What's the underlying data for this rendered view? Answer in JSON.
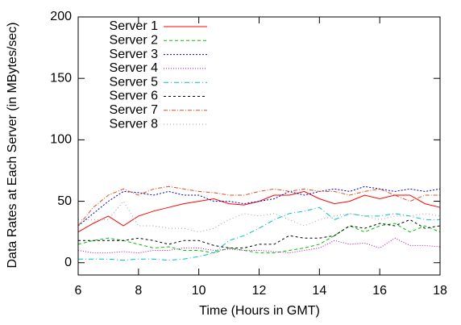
{
  "chart_data": {
    "type": "line",
    "xlabel": "Time (Hours in GMT)",
    "ylabel": "Data Rates at Each Server (in MBytes/sec)",
    "x": [
      6,
      6.5,
      7,
      7.5,
      8,
      8.5,
      9,
      9.5,
      10,
      10.5,
      11,
      11.5,
      12,
      12.5,
      13,
      13.5,
      14,
      14.5,
      15,
      15.5,
      16,
      16.5,
      17,
      17.5,
      18
    ],
    "xlim": [
      6,
      18
    ],
    "xticks": [
      6,
      8,
      10,
      12,
      14,
      16,
      18
    ],
    "ylim": [
      -10,
      200
    ],
    "yticks": [
      0,
      50,
      100,
      150,
      200
    ],
    "legend": "top-left",
    "series": [
      {
        "name": "Server 1",
        "color": "#ff0000",
        "dash": "none",
        "values": [
          25,
          32,
          38,
          30,
          38,
          42,
          45,
          48,
          50,
          52,
          48,
          47,
          50,
          55,
          55,
          58,
          52,
          48,
          50,
          55,
          52,
          55,
          55,
          48,
          45
        ]
      },
      {
        "name": "Server 2",
        "color": "#00c000",
        "dash": "4 3",
        "values": [
          15,
          18,
          20,
          18,
          15,
          12,
          13,
          10,
          10,
          8,
          12,
          10,
          8,
          8,
          10,
          12,
          15,
          22,
          30,
          25,
          30,
          32,
          25,
          30,
          25
        ]
      },
      {
        "name": "Server 3",
        "color": "#0000c0",
        "dash": "2 2",
        "values": [
          30,
          40,
          50,
          58,
          57,
          55,
          58,
          55,
          55,
          50,
          50,
          48,
          50,
          52,
          58,
          55,
          58,
          60,
          58,
          62,
          60,
          58,
          60,
          58,
          60
        ]
      },
      {
        "name": "Server 4",
        "color": "#c000c0",
        "dash": "1 2",
        "values": [
          10,
          8,
          8,
          9,
          8,
          10,
          10,
          12,
          12,
          10,
          11,
          10,
          10,
          9,
          8,
          10,
          12,
          18,
          15,
          16,
          12,
          20,
          14,
          14,
          13
        ]
      },
      {
        "name": "Server 5",
        "color": "#00c0c0",
        "dash": "6 3 1 3",
        "values": [
          3,
          3,
          3,
          2,
          3,
          3,
          2,
          3,
          5,
          8,
          18,
          22,
          28,
          35,
          40,
          42,
          45,
          35,
          40,
          38,
          38,
          40,
          38,
          35,
          35
        ]
      },
      {
        "name": "Server 6",
        "color": "#000000",
        "dash": "3 3",
        "values": [
          18,
          18,
          18,
          18,
          20,
          18,
          15,
          18,
          18,
          14,
          12,
          12,
          15,
          15,
          22,
          20,
          20,
          22,
          30,
          28,
          32,
          30,
          35,
          28,
          30
        ]
      },
      {
        "name": "Server 7",
        "color": "#e0501b",
        "dash": "5 2 1 2",
        "values": [
          30,
          45,
          55,
          60,
          55,
          60,
          62,
          60,
          58,
          57,
          55,
          55,
          58,
          60,
          58,
          60,
          58,
          58,
          55,
          58,
          60,
          55,
          50,
          55,
          55
        ]
      },
      {
        "name": "Server 8",
        "color": "#a0a0a0",
        "dash": "1 3",
        "values": [
          35,
          35,
          35,
          50,
          30,
          30,
          28,
          28,
          25,
          28,
          35,
          40,
          38,
          40,
          35,
          30,
          35,
          38,
          40,
          38,
          35,
          38,
          38,
          40,
          38
        ]
      }
    ]
  }
}
